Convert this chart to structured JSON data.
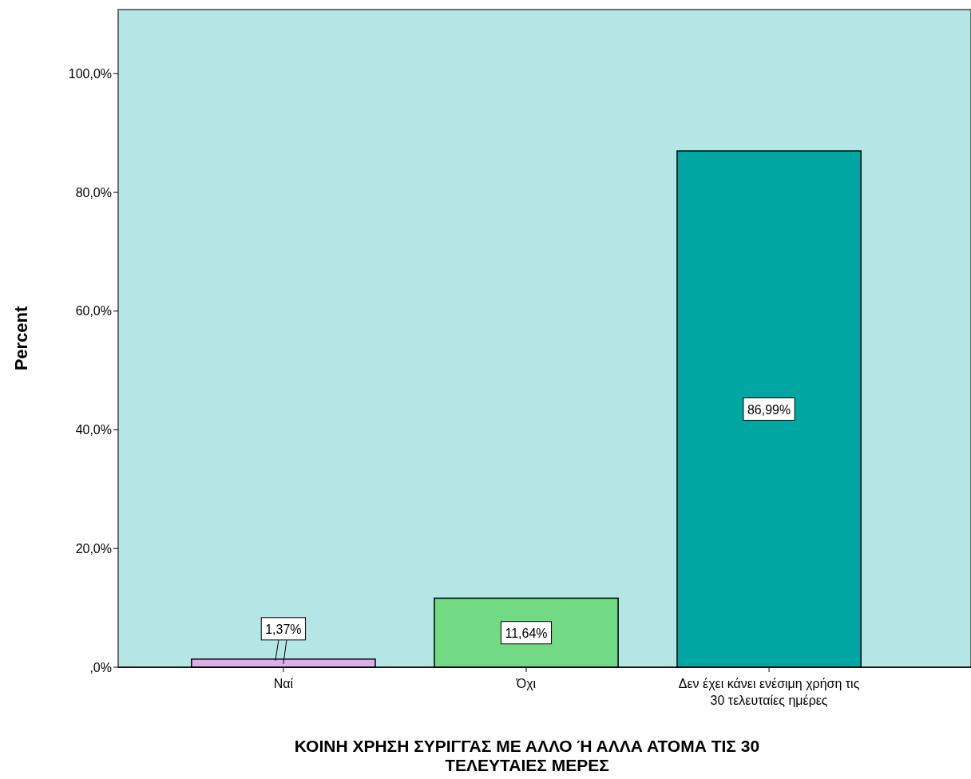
{
  "chart_data": {
    "type": "bar",
    "xlabel": "ΚΟΙΝΗ ΧΡΗΣΗ ΣΥΡΙΓΓΑΣ ΜΕ ΑΛΛΟ Ή ΑΛΛΑ ΑΤΟΜΑ ΤΙΣ 30 ΤΕΛΕΥΤΑΙΕΣ ΜΕΡΕΣ",
    "ylabel": "Percent",
    "categories": [
      "Ναί",
      "Όχι",
      "Δεν έχει κάνει ενέσιμη χρήση τις 30 τελευταίες ημέρες"
    ],
    "values": [
      1.37,
      11.64,
      86.99
    ],
    "colors": [
      "#dcaeee",
      "#72da84",
      "#00a6a2"
    ],
    "value_labels": [
      "1,37%",
      "11,64%",
      "86,99%"
    ],
    "ylim": [
      0,
      110.8
    ],
    "yticks": [
      {
        "value": 0,
        "label": ",0%"
      },
      {
        "value": 20,
        "label": "20,0%"
      },
      {
        "value": 40,
        "label": "40,0%"
      },
      {
        "value": 60,
        "label": "60,0%"
      },
      {
        "value": 80,
        "label": "80,0%"
      },
      {
        "value": 100,
        "label": "100,0%"
      }
    ],
    "grid": false
  }
}
